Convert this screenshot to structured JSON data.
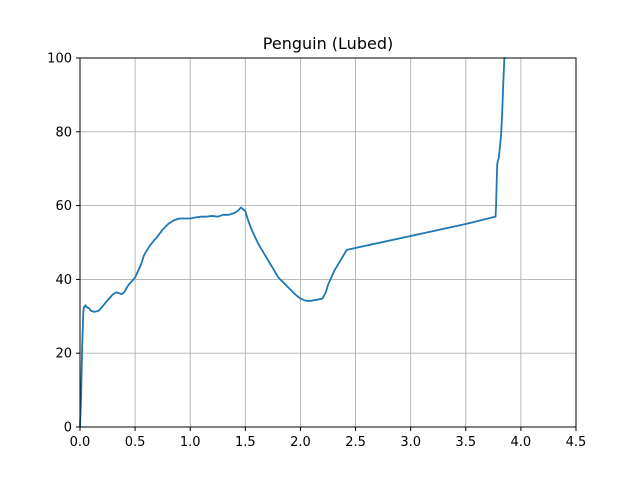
{
  "chart_data": {
    "type": "line",
    "title": "Penguin (Lubed)",
    "xlabel": "",
    "ylabel": "",
    "xlim": [
      0,
      4.5
    ],
    "ylim": [
      0,
      100
    ],
    "x_ticks": [
      0,
      0.5,
      1,
      1.5,
      2,
      2.5,
      3,
      3.5,
      4,
      4.5
    ],
    "x_tick_labels": [
      "0.0",
      "0.5",
      "1.0",
      "1.5",
      "2.0",
      "2.5",
      "3.0",
      "3.5",
      "4.0",
      "4.5"
    ],
    "y_ticks": [
      0,
      20,
      40,
      60,
      80,
      100
    ],
    "y_tick_labels": [
      "0",
      "20",
      "40",
      "60",
      "80",
      "100"
    ],
    "grid": true,
    "legend": "none",
    "series": [
      {
        "color": "#1f77b4",
        "x": [
          0.0,
          0.01,
          0.02,
          0.03,
          0.035,
          0.04,
          0.05,
          0.06,
          0.08,
          0.1,
          0.13,
          0.17,
          0.2,
          0.24,
          0.27,
          0.3,
          0.33,
          0.36,
          0.38,
          0.4,
          0.42,
          0.44,
          0.47,
          0.5,
          0.53,
          0.56,
          0.58,
          0.6,
          0.63,
          0.67,
          0.7,
          0.75,
          0.8,
          0.85,
          0.9,
          0.95,
          1.0,
          1.05,
          1.1,
          1.15,
          1.2,
          1.25,
          1.3,
          1.35,
          1.4,
          1.43,
          1.46,
          1.48,
          1.5,
          1.52,
          1.55,
          1.58,
          1.62,
          1.66,
          1.7,
          1.75,
          1.8,
          1.85,
          1.9,
          1.95,
          2.0,
          2.05,
          2.1,
          2.15,
          2.2,
          2.23,
          2.25,
          2.28,
          2.31,
          2.35,
          2.38,
          2.4,
          2.42,
          2.45,
          3.5,
          3.77,
          3.775,
          3.78,
          3.785,
          3.79,
          3.795,
          3.8,
          3.81,
          3.82,
          3.83,
          3.84,
          3.85
        ],
        "y": [
          0,
          8,
          22,
          31,
          32.5,
          32.5,
          33,
          32.5,
          32.2,
          31.5,
          31.2,
          31.5,
          32.5,
          34,
          35,
          36,
          36.5,
          36.2,
          36,
          36.5,
          37.5,
          38.5,
          39.5,
          40.5,
          42.5,
          44.5,
          46.5,
          47.5,
          49,
          50.5,
          51.5,
          53.5,
          55,
          56,
          56.5,
          56.5,
          56.5,
          56.8,
          57,
          57,
          57.2,
          57,
          57.5,
          57.5,
          58,
          58.5,
          59.5,
          59,
          58.5,
          56.5,
          54,
          52,
          49.5,
          47.5,
          45.5,
          43,
          40.5,
          39,
          37.5,
          36,
          34.8,
          34.2,
          34.2,
          34.5,
          34.8,
          36.5,
          38.5,
          40.5,
          42.5,
          44.5,
          46,
          47,
          48,
          48.2,
          55,
          57,
          60,
          66,
          71,
          72,
          72.5,
          73,
          76,
          79,
          85,
          93,
          100
        ]
      }
    ]
  }
}
